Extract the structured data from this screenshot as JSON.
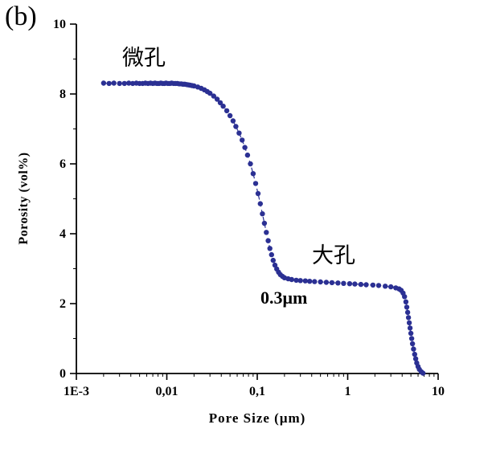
{
  "figure_label": "(b)",
  "annotations": {
    "micropore": "微孔",
    "macropore": "大孔",
    "pore_size_marker": "0.3μm"
  },
  "chart_data": {
    "type": "scatter",
    "title": "",
    "xlabel": "Pore Size (μm)",
    "ylabel": "Porosity (vol%)",
    "x_scale": "log",
    "xlim": [
      0.001,
      10
    ],
    "ylim": [
      0,
      10
    ],
    "x_ticks": [
      {
        "value": 0.001,
        "label": "1E-3"
      },
      {
        "value": 0.01,
        "label": "0,01"
      },
      {
        "value": 0.1,
        "label": "0,1"
      },
      {
        "value": 1,
        "label": "1"
      },
      {
        "value": 10,
        "label": "10"
      }
    ],
    "y_ticks": [
      0,
      2,
      4,
      6,
      8,
      10
    ],
    "grid": false,
    "legend": "none",
    "marker_color": "#2b3093",
    "points": [
      [
        0.002,
        8.31
      ],
      [
        0.0023,
        8.3
      ],
      [
        0.0026,
        8.31
      ],
      [
        0.003,
        8.3
      ],
      [
        0.0034,
        8.3
      ],
      [
        0.0038,
        8.31
      ],
      [
        0.0042,
        8.3
      ],
      [
        0.0046,
        8.31
      ],
      [
        0.005,
        8.3
      ],
      [
        0.0054,
        8.3
      ],
      [
        0.0058,
        8.31
      ],
      [
        0.0062,
        8.3
      ],
      [
        0.0066,
        8.31
      ],
      [
        0.007,
        8.3
      ],
      [
        0.0074,
        8.31
      ],
      [
        0.0078,
        8.3
      ],
      [
        0.0082,
        8.3
      ],
      [
        0.0086,
        8.31
      ],
      [
        0.009,
        8.3
      ],
      [
        0.0094,
        8.3
      ],
      [
        0.0098,
        8.31
      ],
      [
        0.0103,
        8.3
      ],
      [
        0.0108,
        8.3
      ],
      [
        0.0113,
        8.31
      ],
      [
        0.0119,
        8.3
      ],
      [
        0.0125,
        8.3
      ],
      [
        0.0131,
        8.3
      ],
      [
        0.0137,
        8.29
      ],
      [
        0.0144,
        8.29
      ],
      [
        0.0151,
        8.28
      ],
      [
        0.0158,
        8.28
      ],
      [
        0.0166,
        8.27
      ],
      [
        0.0174,
        8.26
      ],
      [
        0.0182,
        8.25
      ],
      [
        0.0191,
        8.24
      ],
      [
        0.02,
        8.23
      ],
      [
        0.022,
        8.2
      ],
      [
        0.024,
        8.16
      ],
      [
        0.026,
        8.12
      ],
      [
        0.028,
        8.07
      ],
      [
        0.03,
        8.02
      ],
      [
        0.033,
        7.94
      ],
      [
        0.036,
        7.85
      ],
      [
        0.039,
        7.75
      ],
      [
        0.042,
        7.65
      ],
      [
        0.046,
        7.52
      ],
      [
        0.05,
        7.38
      ],
      [
        0.054,
        7.23
      ],
      [
        0.058,
        7.07
      ],
      [
        0.063,
        6.88
      ],
      [
        0.068,
        6.68
      ],
      [
        0.073,
        6.47
      ],
      [
        0.078,
        6.25
      ],
      [
        0.084,
        6.0
      ],
      [
        0.09,
        5.72
      ],
      [
        0.096,
        5.44
      ],
      [
        0.102,
        5.15
      ],
      [
        0.108,
        4.86
      ],
      [
        0.114,
        4.57
      ],
      [
        0.12,
        4.3
      ],
      [
        0.126,
        4.04
      ],
      [
        0.132,
        3.8
      ],
      [
        0.138,
        3.58
      ],
      [
        0.144,
        3.4
      ],
      [
        0.15,
        3.24
      ],
      [
        0.157,
        3.1
      ],
      [
        0.164,
        2.99
      ],
      [
        0.172,
        2.9
      ],
      [
        0.18,
        2.83
      ],
      [
        0.19,
        2.78
      ],
      [
        0.2,
        2.74
      ],
      [
        0.22,
        2.71
      ],
      [
        0.24,
        2.69
      ],
      [
        0.27,
        2.67
      ],
      [
        0.3,
        2.66
      ],
      [
        0.34,
        2.65
      ],
      [
        0.38,
        2.64
      ],
      [
        0.43,
        2.63
      ],
      [
        0.5,
        2.62
      ],
      [
        0.58,
        2.61
      ],
      [
        0.67,
        2.6
      ],
      [
        0.78,
        2.59
      ],
      [
        0.9,
        2.58
      ],
      [
        1.05,
        2.57
      ],
      [
        1.2,
        2.56
      ],
      [
        1.4,
        2.55
      ],
      [
        1.6,
        2.54
      ],
      [
        1.9,
        2.53
      ],
      [
        2.2,
        2.52
      ],
      [
        2.6,
        2.5
      ],
      [
        3.0,
        2.48
      ],
      [
        3.4,
        2.45
      ],
      [
        3.7,
        2.42
      ],
      [
        3.9,
        2.38
      ],
      [
        4.1,
        2.3
      ],
      [
        4.25,
        2.2
      ],
      [
        4.4,
        2.05
      ],
      [
        4.5,
        1.9
      ],
      [
        4.6,
        1.75
      ],
      [
        4.7,
        1.6
      ],
      [
        4.8,
        1.45
      ],
      [
        4.9,
        1.3
      ],
      [
        5.0,
        1.15
      ],
      [
        5.1,
        1.0
      ],
      [
        5.2,
        0.85
      ],
      [
        5.35,
        0.7
      ],
      [
        5.5,
        0.55
      ],
      [
        5.65,
        0.42
      ],
      [
        5.8,
        0.3
      ],
      [
        6.0,
        0.2
      ],
      [
        6.2,
        0.12
      ],
      [
        6.5,
        0.05
      ],
      [
        6.8,
        0.01
      ]
    ]
  }
}
